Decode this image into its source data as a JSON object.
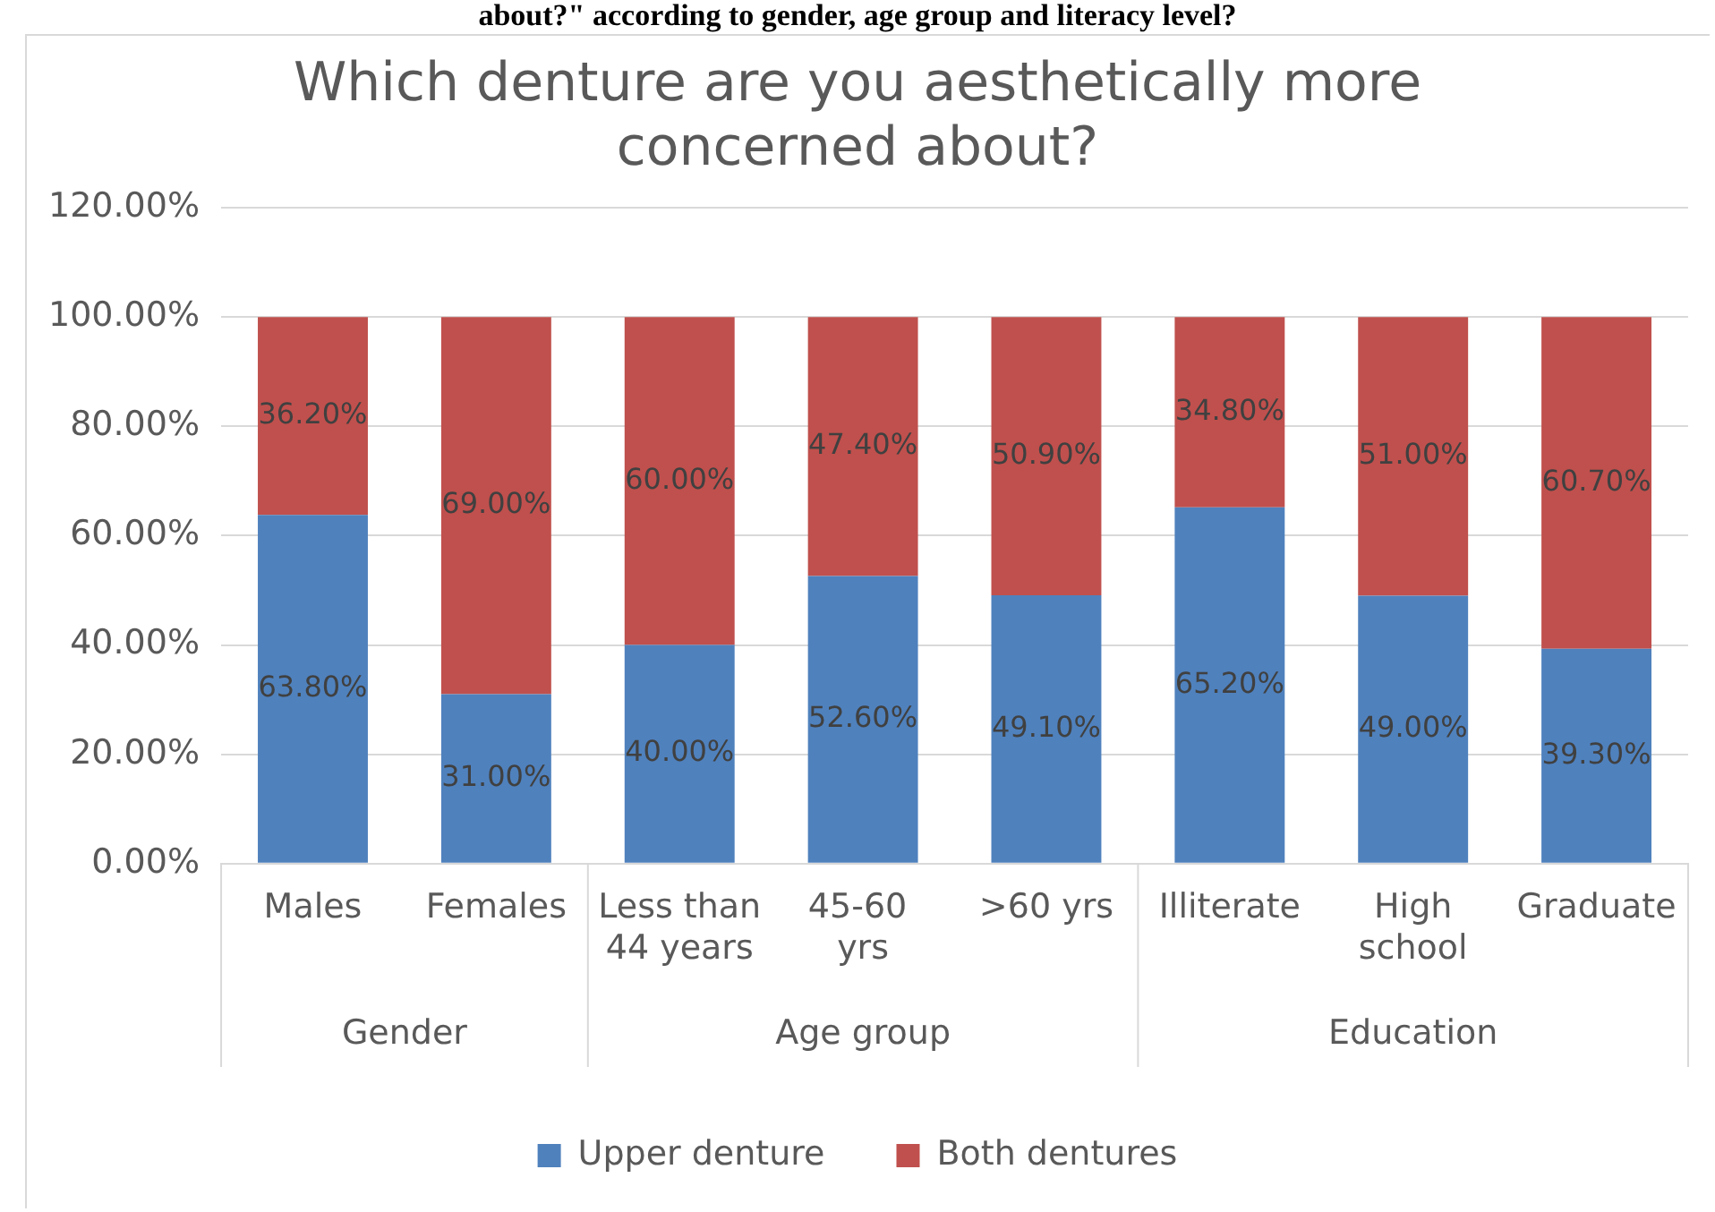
{
  "chart_data": {
    "type": "bar",
    "stacked": true,
    "title": "Which denture are you aesthetically more concerned about?",
    "annotations": [
      "about?\" according to gender, age group and literacy level?",
      "Gender",
      "Age group",
      "Education"
    ],
    "categories": [
      "Males",
      "Females",
      "Less than 44 years",
      "45-60  yrs",
      ">60 yrs",
      "Illiterate",
      "High school",
      "Graduate"
    ],
    "series": [
      {
        "name": "Upper denture",
        "color": "#4f81bd",
        "values": [
          63.8,
          31.0,
          40.0,
          52.6,
          49.1,
          65.2,
          49.0,
          39.3
        ],
        "value_labels": [
          "63.80%",
          "31.00%",
          "40.00%",
          "52.60%",
          "49.10%",
          "65.20%",
          "49.00%",
          "39.30%"
        ]
      },
      {
        "name": "Both dentures",
        "color": "#c0504d",
        "values": [
          36.2,
          69.0,
          60.0,
          47.4,
          50.9,
          34.8,
          51.0,
          60.7
        ],
        "value_labels": [
          "36.20%",
          "69.00%",
          "60.00%",
          "47.40%",
          "50.90%",
          "34.80%",
          "51.00%",
          "60.70%"
        ]
      }
    ],
    "ylim": [
      0,
      120
    ],
    "yticks": [
      {
        "value": 0,
        "label": "0.00%"
      },
      {
        "value": 20,
        "label": "20.00%"
      },
      {
        "value": 40,
        "label": "40.00%"
      },
      {
        "value": 60,
        "label": "60.00%"
      },
      {
        "value": 80,
        "label": "80.00%"
      },
      {
        "value": 100,
        "label": "100.00%"
      },
      {
        "value": 120,
        "label": "120.00%"
      }
    ],
    "grid": "y",
    "legend": "bottom"
  }
}
